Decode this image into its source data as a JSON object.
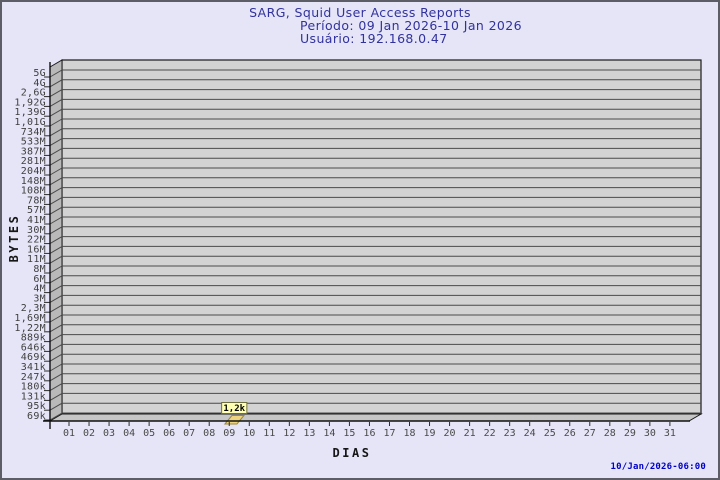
{
  "header": {
    "title": "SARG, Squid User Access Reports",
    "period": "Período: 09 Jan 2026-10 Jan 2026",
    "user": "Usuário: 192.168.0.47"
  },
  "footer": {
    "generated": "10/Jan/2026-06:00"
  },
  "colors": {
    "background": "#e5e5f7",
    "title_color": "#32329e",
    "timestamp_color": "#0000cc",
    "plot_face": "#d3d3d3",
    "wall": "#b9b9b9",
    "floor": "#c6c6c6",
    "grid_color": "#4b4b4b",
    "bar_fill": "#eed47f",
    "bar_stroke": "#9a8837",
    "label_bg": "#ffffb4"
  },
  "chart_data": {
    "type": "bar",
    "title": "SARG, Squid User Access Reports",
    "subtitle": "Período: 09 Jan 2026-10 Jan 2026 / Usuário: 192.168.0.47",
    "xlabel": "DIAS",
    "ylabel": "BYTES",
    "grid": true,
    "legend": false,
    "style": "3d-bar",
    "y_axis_bottom_label": "69k",
    "y_axis_top_label": "5G",
    "y_tick_labels": [
      "5G",
      "4G",
      "2,6G",
      "1,92G",
      "1,39G",
      "1,01G",
      "734M",
      "533M",
      "387M",
      "281M",
      "204M",
      "148M",
      "108M",
      "78M",
      "57M",
      "41M",
      "30M",
      "22M",
      "16M",
      "11M",
      "8M",
      "6M",
      "4M",
      "3M",
      "2,3M",
      "1,69M",
      "1,22M",
      "889k",
      "646k",
      "469k",
      "341k",
      "247k",
      "180k",
      "131k",
      "95k",
      "69k"
    ],
    "x_categories": [
      "01",
      "02",
      "03",
      "04",
      "05",
      "06",
      "07",
      "08",
      "09",
      "10",
      "11",
      "12",
      "13",
      "14",
      "15",
      "16",
      "17",
      "18",
      "19",
      "20",
      "21",
      "22",
      "23",
      "24",
      "25",
      "26",
      "27",
      "28",
      "29",
      "30",
      "31"
    ],
    "series": [
      {
        "name": "bytes",
        "values": [
          null,
          null,
          null,
          null,
          null,
          null,
          null,
          null,
          1200,
          null,
          null,
          null,
          null,
          null,
          null,
          null,
          null,
          null,
          null,
          null,
          null,
          null,
          null,
          null,
          null,
          null,
          null,
          null,
          null,
          null,
          null
        ]
      }
    ],
    "data_labels": [
      {
        "x": "09",
        "text": "1,2k"
      }
    ]
  }
}
